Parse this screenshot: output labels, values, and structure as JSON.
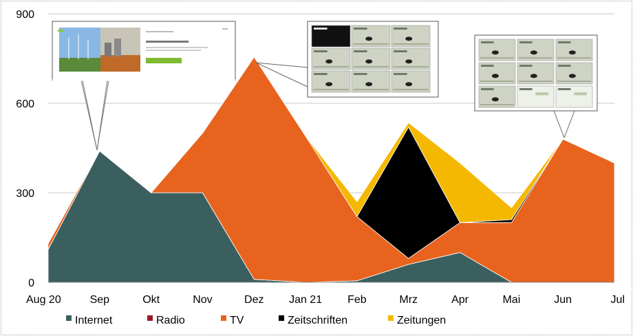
{
  "chart_data": {
    "type": "area",
    "categories": [
      "Aug 20",
      "Sep",
      "Okt",
      "Nov",
      "Dez",
      "Jan 21",
      "Feb",
      "Mrz",
      "Apr",
      "Mai",
      "Jun",
      "Jul"
    ],
    "yticks": [
      0,
      300,
      600,
      900
    ],
    "ylim": [
      0,
      900
    ],
    "grid": true,
    "legend_position": "bottom",
    "series": [
      {
        "name": "Internet",
        "color": "#3b5f5e",
        "values": [
          110,
          440,
          300,
          300,
          10,
          0,
          5,
          60,
          100,
          0,
          0,
          0
        ]
      },
      {
        "name": "Radio",
        "color": "#9b1b24",
        "values": [
          0,
          0,
          0,
          0,
          0,
          0,
          0,
          0,
          0,
          0,
          0,
          0
        ]
      },
      {
        "name": "TV",
        "color": "#e8641e",
        "values": [
          20,
          0,
          0,
          200,
          745,
          490,
          215,
          20,
          100,
          200,
          480,
          400
        ]
      },
      {
        "name": "Zeitschriften",
        "color": "#000000",
        "values": [
          0,
          0,
          0,
          0,
          0,
          0,
          0,
          440,
          0,
          10,
          0,
          0
        ]
      },
      {
        "name": "Zeitungen",
        "color": "#f5b800",
        "values": [
          0,
          0,
          0,
          0,
          0,
          0,
          50,
          15,
          200,
          40,
          0,
          0
        ]
      }
    ]
  }
}
